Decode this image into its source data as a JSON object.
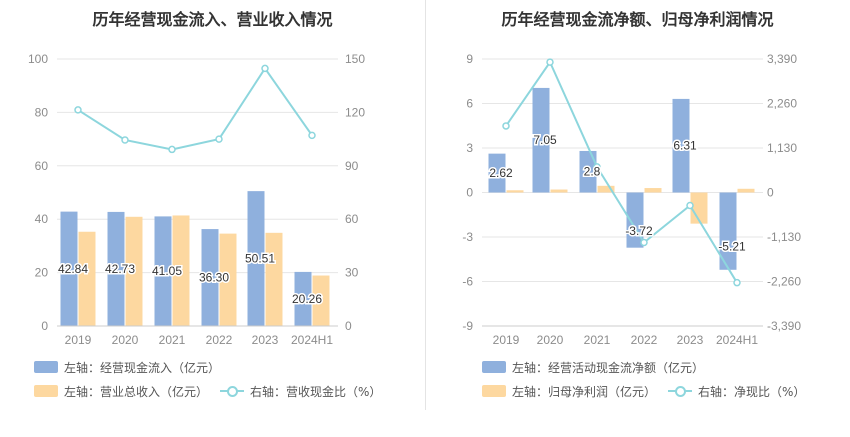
{
  "chart_data": [
    {
      "type": "bar+line",
      "title": "历年经营现金流入、营业收入情况",
      "categories": [
        "2019",
        "2020",
        "2021",
        "2022",
        "2023",
        "2024H1"
      ],
      "left_axis": {
        "ticks": [
          "0",
          "20",
          "40",
          "60",
          "80",
          "100"
        ],
        "range": [
          0,
          100
        ]
      },
      "right_axis": {
        "ticks": [
          "0",
          "30",
          "60",
          "90",
          "120",
          "150"
        ],
        "range": [
          0,
          150
        ]
      },
      "series": [
        {
          "name": "左轴：经营现金流入（亿元）",
          "type": "bar",
          "axis": "left",
          "color": "#8fb0dd",
          "values": [
            42.84,
            42.73,
            41.05,
            36.3,
            50.51,
            20.26
          ],
          "labels": [
            "42.84",
            "42.73",
            "41.05",
            "36.30",
            "50.51",
            "20.26"
          ]
        },
        {
          "name": "左轴：营业总收入（亿元）",
          "type": "bar",
          "axis": "left",
          "color": "#fdd8a0",
          "values": [
            35.3,
            40.9,
            41.4,
            34.6,
            34.9,
            18.9
          ]
        },
        {
          "name": "右轴：营收现金比（%）",
          "type": "line",
          "axis": "right",
          "color": "#8dd6dd",
          "values": [
            121.4,
            104.5,
            99.2,
            105.0,
            144.7,
            107.1
          ]
        }
      ]
    },
    {
      "type": "bar+line",
      "title": "历年经营现金流净额、归母净利润情况",
      "categories": [
        "2019",
        "2020",
        "2021",
        "2022",
        "2023",
        "2024H1"
      ],
      "left_axis": {
        "ticks": [
          "-9",
          "-6",
          "-3",
          "0",
          "3",
          "6",
          "9"
        ],
        "range": [
          -9,
          9
        ]
      },
      "right_axis": {
        "ticks": [
          "-3,390",
          "-2,260",
          "-1,130",
          "0",
          "1,130",
          "2,260",
          "3,390"
        ],
        "range": [
          -3390,
          3390
        ]
      },
      "series": [
        {
          "name": "左轴：经营活动现金流净额（亿元）",
          "type": "bar",
          "axis": "left",
          "color": "#8fb0dd",
          "values": [
            2.62,
            7.05,
            2.8,
            -3.72,
            6.31,
            -5.21
          ],
          "labels": [
            "2.62",
            "7.05",
            "2.8",
            "-3.72",
            "6.31",
            "-5.21"
          ]
        },
        {
          "name": "左轴：归母净利润（亿元）",
          "type": "bar",
          "axis": "left",
          "color": "#fdd8a0",
          "values": [
            0.15,
            0.2,
            0.45,
            0.3,
            -2.1,
            0.25
          ]
        },
        {
          "name": "右轴：净现比（%）",
          "type": "line",
          "axis": "right",
          "color": "#8dd6dd",
          "values": [
            1690,
            3310,
            650,
            -1270,
            -330,
            -2290
          ]
        }
      ]
    }
  ]
}
